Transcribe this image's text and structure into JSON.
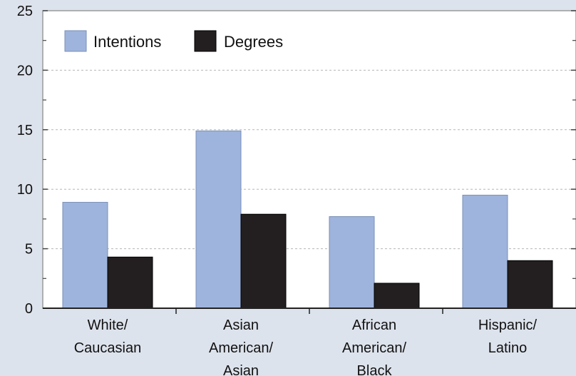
{
  "chart_data": {
    "type": "bar",
    "categories": [
      [
        "White/",
        "Caucasian"
      ],
      [
        "Asian",
        "American/",
        "Asian"
      ],
      [
        "African",
        "American/",
        "Black"
      ],
      [
        "Hispanic/",
        "Latino"
      ]
    ],
    "series": [
      {
        "name": "Intentions",
        "color": "#9fb4dc",
        "values": [
          8.9,
          14.9,
          7.7,
          9.5
        ]
      },
      {
        "name": "Degrees",
        "color": "#231f20",
        "values": [
          4.3,
          7.9,
          2.1,
          4.0
        ]
      }
    ],
    "yticks": [
      0,
      5,
      10,
      15,
      20,
      25
    ],
    "ylim": [
      0,
      25
    ],
    "grid": true,
    "legend_position": "top-left",
    "title": "",
    "xlabel": "",
    "ylabel": ""
  }
}
